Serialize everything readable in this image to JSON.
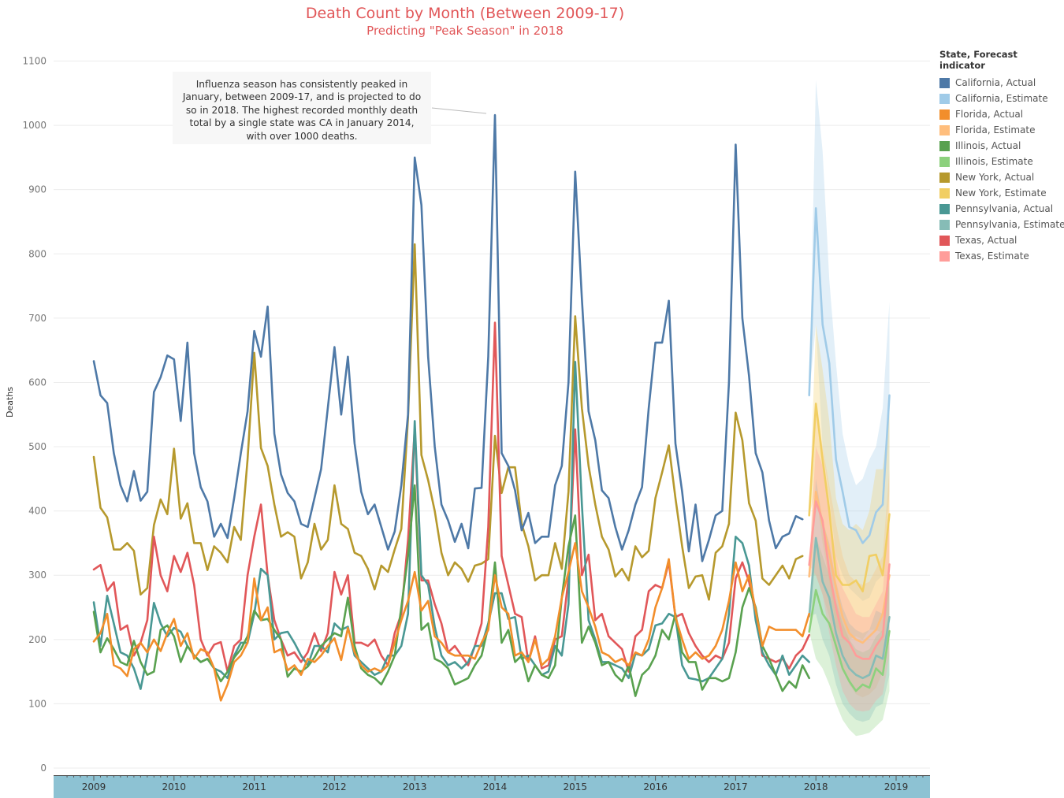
{
  "title": "Death Count by Month (Between 2009-17)",
  "subtitle": "Predicting \"Peak Season\" in 2018",
  "annotation": "Influenza season has consistently peaked in January, between 2009-17, and is projected to do so in 2018. The highest recorded monthly death total by a single state was CA in January 2014, with over 1000 deaths.",
  "legend": {
    "title": "State, Forecast indicator",
    "items": [
      {
        "label": "California, Actual",
        "color": "#4e79a7"
      },
      {
        "label": "California, Estimate",
        "color": "#a0cbe8"
      },
      {
        "label": "Florida, Actual",
        "color": "#f28e2b"
      },
      {
        "label": "Florida, Estimate",
        "color": "#ffbe7d"
      },
      {
        "label": "Illinois, Actual",
        "color": "#59a14f"
      },
      {
        "label": "Illinois, Estimate",
        "color": "#8cd17d"
      },
      {
        "label": "New York, Actual",
        "color": "#b6992d"
      },
      {
        "label": "New York, Estimate",
        "color": "#f1ce63"
      },
      {
        "label": "Pennsylvania, Actual",
        "color": "#499894"
      },
      {
        "label": "Pennsylvania, Estimate",
        "color": "#86bcb6"
      },
      {
        "label": "Texas, Actual",
        "color": "#e15759"
      },
      {
        "label": "Texas, Estimate",
        "color": "#ff9d9a"
      }
    ]
  },
  "chart_data": {
    "type": "line",
    "ylabel": "Deaths",
    "xlabel": "",
    "ylim": [
      0,
      1100
    ],
    "yticks": [
      0,
      100,
      200,
      300,
      400,
      500,
      600,
      700,
      800,
      900,
      1000,
      1100
    ],
    "xticks": [
      "2009",
      "2010",
      "2011",
      "2012",
      "2013",
      "2014",
      "2015",
      "2016",
      "2017",
      "2018",
      "2019"
    ],
    "x_start": "2009-01",
    "x_end": "2018-12",
    "grid": true,
    "legend_position": "right",
    "series": [
      {
        "name": "California, Actual",
        "color": "#4e79a7",
        "start": "2009-01",
        "values": [
          633,
          580,
          568,
          490,
          440,
          415,
          462,
          416,
          430,
          585,
          608,
          642,
          636,
          540,
          662,
          490,
          437,
          415,
          360,
          380,
          358,
          420,
          490,
          555,
          680,
          640,
          718,
          520,
          457,
          428,
          415,
          380,
          375,
          420,
          465,
          560,
          655,
          550,
          640,
          505,
          430,
          395,
          410,
          375,
          340,
          368,
          440,
          550,
          950,
          876,
          640,
          500,
          410,
          385,
          352,
          380,
          342,
          435,
          436,
          640,
          1016,
          490,
          470,
          432,
          370,
          397,
          350,
          360,
          360,
          440,
          470,
          600,
          928,
          730,
          555,
          510,
          432,
          420,
          375,
          340,
          370,
          410,
          437,
          560,
          662,
          662,
          727,
          505,
          430,
          337,
          410,
          322,
          355,
          393,
          400,
          600,
          970,
          700,
          610,
          490,
          460,
          385,
          342,
          360,
          365,
          392,
          387
        ]
      },
      {
        "name": "California, Estimate",
        "color": "#a0cbe8",
        "start": "2017-12",
        "values": [
          580,
          871,
          690,
          630,
          480,
          430,
          375,
          370,
          350,
          362,
          398,
          410,
          580
        ]
      },
      {
        "name": "Florida, Actual",
        "color": "#f28e2b",
        "start": "2009-01",
        "values": [
          197,
          210,
          240,
          160,
          155,
          143,
          185,
          195,
          180,
          200,
          182,
          210,
          232,
          190,
          210,
          170,
          185,
          180,
          155,
          105,
          130,
          165,
          175,
          195,
          295,
          230,
          250,
          180,
          185,
          152,
          160,
          145,
          170,
          165,
          175,
          190,
          202,
          168,
          218,
          180,
          160,
          150,
          155,
          150,
          160,
          195,
          230,
          260,
          305,
          245,
          260,
          205,
          195,
          180,
          175,
          175,
          175,
          170,
          195,
          215,
          300,
          250,
          240,
          175,
          180,
          165,
          200,
          160,
          170,
          205,
          265,
          305,
          350,
          275,
          250,
          220,
          180,
          175,
          165,
          170,
          160,
          180,
          175,
          200,
          250,
          280,
          325,
          235,
          200,
          170,
          180,
          170,
          175,
          190,
          215,
          260,
          320,
          275,
          300,
          245,
          190,
          220,
          215,
          215,
          215,
          215,
          205,
          240
        ]
      },
      {
        "name": "Florida, Estimate",
        "color": "#ffbe7d",
        "start": "2017-12",
        "values": [
          298,
          430,
          380,
          335,
          280,
          235,
          210,
          200,
          195,
          205,
          215,
          240,
          300
        ]
      },
      {
        "name": "Illinois, Actual",
        "color": "#59a14f",
        "start": "2009-01",
        "values": [
          243,
          180,
          202,
          185,
          165,
          160,
          198,
          165,
          145,
          150,
          215,
          222,
          205,
          165,
          190,
          175,
          165,
          170,
          155,
          135,
          150,
          172,
          185,
          205,
          245,
          230,
          232,
          215,
          200,
          142,
          155,
          150,
          158,
          172,
          190,
          200,
          210,
          205,
          265,
          190,
          155,
          145,
          140,
          130,
          150,
          175,
          250,
          330,
          440,
          215,
          225,
          170,
          165,
          155,
          130,
          135,
          140,
          160,
          175,
          220,
          320,
          195,
          215,
          165,
          175,
          135,
          160,
          145,
          140,
          160,
          265,
          345,
          393,
          195,
          220,
          195,
          160,
          165,
          145,
          135,
          160,
          112,
          145,
          155,
          175,
          215,
          200,
          240,
          180,
          165,
          165,
          122,
          140,
          140,
          135,
          140,
          180,
          250,
          280,
          250,
          190,
          170,
          145,
          120,
          135,
          125,
          160,
          140
        ]
      },
      {
        "name": "Illinois, Estimate",
        "color": "#8cd17d",
        "start": "2017-12",
        "values": [
          212,
          277,
          240,
          225,
          190,
          155,
          135,
          120,
          130,
          125,
          155,
          145,
          213
        ]
      },
      {
        "name": "New York, Actual",
        "color": "#b6992d",
        "start": "2009-01",
        "values": [
          484,
          405,
          390,
          340,
          340,
          350,
          338,
          270,
          280,
          378,
          418,
          395,
          497,
          388,
          412,
          350,
          350,
          308,
          345,
          335,
          320,
          375,
          355,
          480,
          646,
          498,
          470,
          410,
          360,
          367,
          360,
          295,
          320,
          380,
          340,
          355,
          440,
          380,
          372,
          335,
          330,
          310,
          278,
          315,
          305,
          340,
          372,
          545,
          815,
          487,
          448,
          400,
          335,
          300,
          320,
          310,
          290,
          315,
          318,
          325,
          517,
          428,
          468,
          468,
          380,
          345,
          292,
          300,
          300,
          350,
          310,
          430,
          703,
          560,
          470,
          410,
          360,
          340,
          298,
          310,
          292,
          345,
          328,
          338,
          420,
          460,
          502,
          420,
          345,
          280,
          298,
          300,
          262,
          335,
          345,
          380,
          553,
          510,
          412,
          385,
          295,
          285,
          300,
          315,
          295,
          325,
          330
        ]
      },
      {
        "name": "New York, Estimate",
        "color": "#f1ce63",
        "start": "2017-12",
        "values": [
          393,
          567,
          480,
          400,
          300,
          285,
          285,
          292,
          275,
          330,
          332,
          300,
          395
        ]
      },
      {
        "name": "Pennsylvania, Actual",
        "color": "#499894",
        "start": "2009-01",
        "values": [
          258,
          190,
          268,
          225,
          180,
          175,
          155,
          123,
          175,
          257,
          225,
          205,
          218,
          212,
          190,
          175,
          165,
          170,
          155,
          150,
          140,
          175,
          195,
          195,
          240,
          310,
          300,
          200,
          210,
          212,
          195,
          175,
          160,
          190,
          190,
          180,
          225,
          215,
          220,
          175,
          165,
          155,
          145,
          150,
          175,
          175,
          190,
          240,
          540,
          300,
          285,
          220,
          175,
          160,
          165,
          155,
          165,
          190,
          190,
          225,
          272,
          272,
          232,
          235,
          170,
          175,
          160,
          145,
          150,
          190,
          175,
          255,
          632,
          410,
          230,
          200,
          165,
          165,
          160,
          155,
          140,
          178,
          175,
          185,
          222,
          225,
          240,
          235,
          160,
          140,
          138,
          135,
          140,
          155,
          170,
          240,
          360,
          350,
          315,
          230,
          180,
          160,
          145,
          175,
          145,
          160,
          175,
          165
        ]
      },
      {
        "name": "Pennsylvania, Estimate",
        "color": "#86bcb6",
        "start": "2017-12",
        "values": [
          236,
          358,
          290,
          265,
          210,
          175,
          155,
          145,
          140,
          145,
          175,
          170,
          235
        ]
      },
      {
        "name": "Texas, Actual",
        "color": "#e15759",
        "start": "2009-01",
        "values": [
          309,
          316,
          276,
          289,
          215,
          222,
          175,
          195,
          230,
          360,
          300,
          275,
          330,
          305,
          335,
          285,
          200,
          175,
          192,
          196,
          150,
          190,
          200,
          300,
          360,
          410,
          300,
          230,
          200,
          175,
          180,
          165,
          180,
          210,
          182,
          210,
          305,
          270,
          300,
          195,
          195,
          190,
          200,
          175,
          160,
          210,
          240,
          355,
          528,
          292,
          292,
          255,
          225,
          180,
          190,
          175,
          160,
          190,
          225,
          375,
          693,
          330,
          285,
          240,
          235,
          165,
          205,
          155,
          160,
          200,
          205,
          295,
          527,
          300,
          332,
          230,
          240,
          205,
          195,
          185,
          150,
          205,
          215,
          275,
          285,
          280,
          320,
          235,
          240,
          210,
          190,
          175,
          165,
          175,
          170,
          195,
          295,
          320,
          290,
          240,
          175,
          170,
          165,
          170,
          155,
          175,
          185,
          207
        ]
      },
      {
        "name": "Texas, Estimate",
        "color": "#ff9d9a",
        "start": "2017-12",
        "values": [
          316,
          415,
          385,
          305,
          250,
          205,
          195,
          175,
          170,
          170,
          190,
          205,
          317
        ]
      }
    ],
    "bands": [
      {
        "series": "California, Estimate",
        "color": "#a0cbe8",
        "upper": [
          580,
          1070,
          960,
          760,
          630,
          520,
          470,
          440,
          450,
          480,
          500,
          560,
          725
        ],
        "lower": [
          580,
          690,
          500,
          420,
          330,
          300,
          280,
          270,
          260,
          265,
          290,
          300,
          430
        ]
      },
      {
        "series": "Florida, Estimate",
        "color": "#ffbe7d",
        "upper": [
          298,
          560,
          500,
          440,
          380,
          330,
          300,
          290,
          285,
          290,
          310,
          330,
          465
        ],
        "lower": [
          298,
          300,
          270,
          235,
          190,
          155,
          130,
          115,
          110,
          115,
          125,
          150,
          200
        ]
      },
      {
        "series": "Illinois, Estimate",
        "color": "#8cd17d",
        "upper": [
          212,
          360,
          330,
          300,
          260,
          225,
          200,
          185,
          180,
          185,
          205,
          215,
          300
        ],
        "lower": [
          212,
          170,
          155,
          130,
          100,
          75,
          60,
          50,
          52,
          55,
          65,
          75,
          120
        ]
      },
      {
        "series": "New York, Estimate",
        "color": "#f1ce63",
        "upper": [
          393,
          690,
          620,
          540,
          420,
          380,
          370,
          380,
          370,
          400,
          465,
          465,
          560
        ],
        "lower": [
          393,
          430,
          350,
          290,
          220,
          200,
          200,
          205,
          200,
          215,
          215,
          210,
          270
        ]
      },
      {
        "series": "Pennsylvania, Estimate",
        "color": "#86bcb6",
        "upper": [
          236,
          450,
          385,
          350,
          290,
          250,
          225,
          215,
          210,
          215,
          245,
          240,
          320
        ],
        "lower": [
          236,
          240,
          200,
          175,
          130,
          100,
          85,
          75,
          72,
          75,
          95,
          100,
          145
        ]
      },
      {
        "series": "Texas, Estimate",
        "color": "#ff9d9a",
        "upper": [
          316,
          500,
          470,
          400,
          330,
          280,
          260,
          240,
          235,
          235,
          255,
          275,
          400
        ],
        "lower": [
          316,
          300,
          270,
          210,
          160,
          120,
          100,
          90,
          88,
          90,
          105,
          115,
          175
        ]
      }
    ]
  }
}
